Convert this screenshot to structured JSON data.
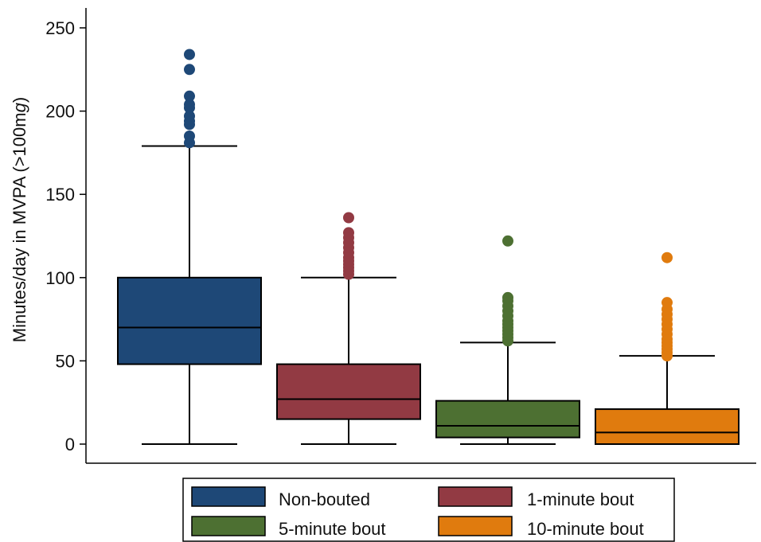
{
  "chart_data": {
    "type": "boxplot",
    "ylabel": "Minutes/day in MVPA (>100mg)",
    "ylabel_parts": [
      "Minutes/day in MVPA (>100m",
      "g",
      ")"
    ],
    "ylim": [
      0,
      250
    ],
    "yticks": [
      0,
      50,
      100,
      150,
      200,
      250
    ],
    "grid": false,
    "legend_position": "bottom",
    "series": [
      {
        "name": "Non-bouted",
        "color": "#1e4877",
        "whisker_low": 0,
        "q1": 48,
        "median": 70,
        "q3": 100,
        "whisker_high": 179,
        "outliers": [
          181,
          185,
          192,
          194,
          197,
          202,
          204,
          209,
          225,
          234
        ]
      },
      {
        "name": "1-minute bout",
        "color": "#923a43",
        "whisker_low": 0,
        "q1": 15,
        "median": 27,
        "q3": 48,
        "whisker_high": 100,
        "outliers": [
          102,
          104,
          106,
          108,
          110,
          112,
          115,
          118,
          121,
          124,
          127,
          136
        ]
      },
      {
        "name": "5-minute bout",
        "color": "#4d7032",
        "whisker_low": 0,
        "q1": 4,
        "median": 11,
        "q3": 26,
        "whisker_high": 61,
        "outliers": [
          62,
          64,
          66,
          68,
          70,
          72,
          74,
          77,
          80,
          83,
          86,
          88,
          122
        ]
      },
      {
        "name": "10-minute bout",
        "color": "#e07b0e",
        "whisker_low": 0,
        "q1": 0,
        "median": 7,
        "q3": 21,
        "whisker_high": 53,
        "outliers": [
          53,
          55,
          57,
          59,
          61,
          63,
          66,
          69,
          72,
          75,
          78,
          81,
          85,
          112
        ]
      }
    ]
  }
}
